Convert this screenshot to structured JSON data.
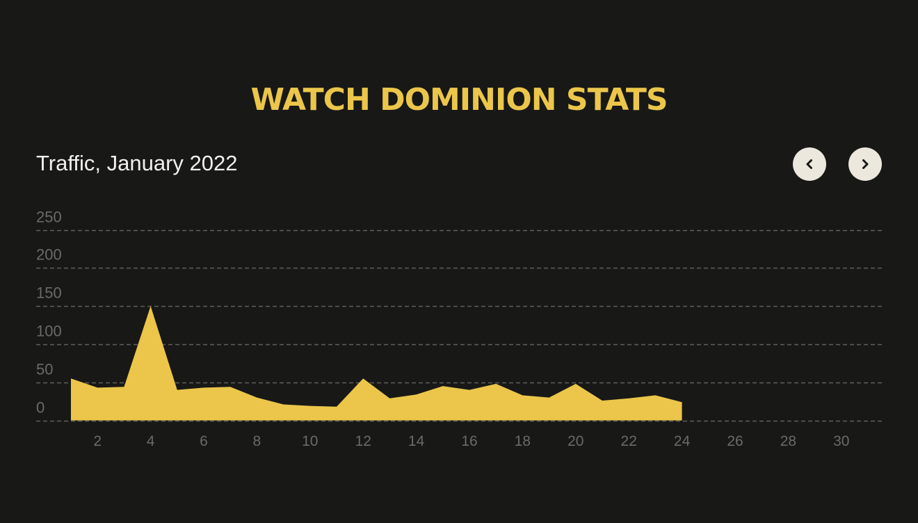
{
  "page": {
    "title": "Watch Dominion Stats"
  },
  "chart_header": {
    "title": "Traffic, January 2022",
    "prev_button": {
      "icon": "chevron-left-icon",
      "label": "Previous month"
    },
    "next_button": {
      "icon": "chevron-right-icon",
      "label": "Next month"
    }
  },
  "colors": {
    "background": "#181817",
    "accent": "#ebc64a",
    "area_fill": "#ebc64a",
    "gridline": "#5e5e5b",
    "tick_label": "#6a6a68",
    "button_bg": "#ece8dd",
    "button_icon": "#181817",
    "heading_text": "#f2f0ea"
  },
  "chart_data": {
    "type": "area",
    "title": "Traffic, January 2022",
    "xlabel": "",
    "ylabel": "",
    "x": [
      1,
      2,
      3,
      4,
      5,
      6,
      7,
      8,
      9,
      10,
      11,
      12,
      13,
      14,
      15,
      16,
      17,
      18,
      19,
      20,
      21,
      22,
      23,
      24
    ],
    "values": [
      55,
      43,
      44,
      150,
      40,
      43,
      44,
      30,
      21,
      19,
      18,
      55,
      29,
      34,
      45,
      40,
      48,
      33,
      30,
      48,
      26,
      29,
      33,
      24
    ],
    "xlim": [
      1,
      31
    ],
    "ylim": [
      0,
      250
    ],
    "x_ticks": [
      2,
      4,
      6,
      8,
      10,
      12,
      14,
      16,
      18,
      20,
      22,
      24,
      26,
      28,
      30
    ],
    "y_ticks": [
      0,
      50,
      100,
      150,
      200,
      250
    ],
    "grid": "horizontal-dashed",
    "legend": null
  }
}
